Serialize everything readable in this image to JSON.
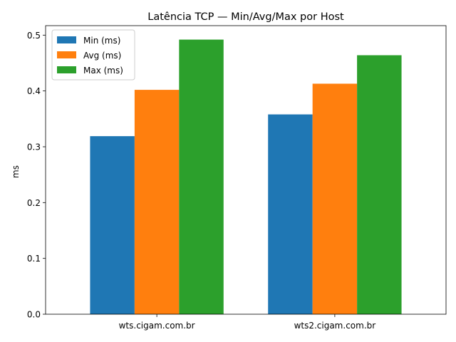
{
  "chart_data": {
    "type": "bar",
    "title": "Latência TCP — Min/Avg/Max por Host",
    "xlabel": "",
    "ylabel": "ms",
    "categories": [
      "wts.cigam.com.br",
      "wts2.cigam.com.br"
    ],
    "series": [
      {
        "name": "Min (ms)",
        "values": [
          0.319,
          0.358
        ],
        "color": "#1f77b4"
      },
      {
        "name": "Avg (ms)",
        "values": [
          0.402,
          0.413
        ],
        "color": "#ff7f0e"
      },
      {
        "name": "Max (ms)",
        "values": [
          0.492,
          0.464
        ],
        "color": "#2ca02c"
      }
    ],
    "ylim": [
      0,
      0.517
    ],
    "yticks": [
      "0.0",
      "0.1",
      "0.2",
      "0.3",
      "0.4",
      "0.5"
    ],
    "grid": false,
    "legend_placement": "top-left"
  }
}
